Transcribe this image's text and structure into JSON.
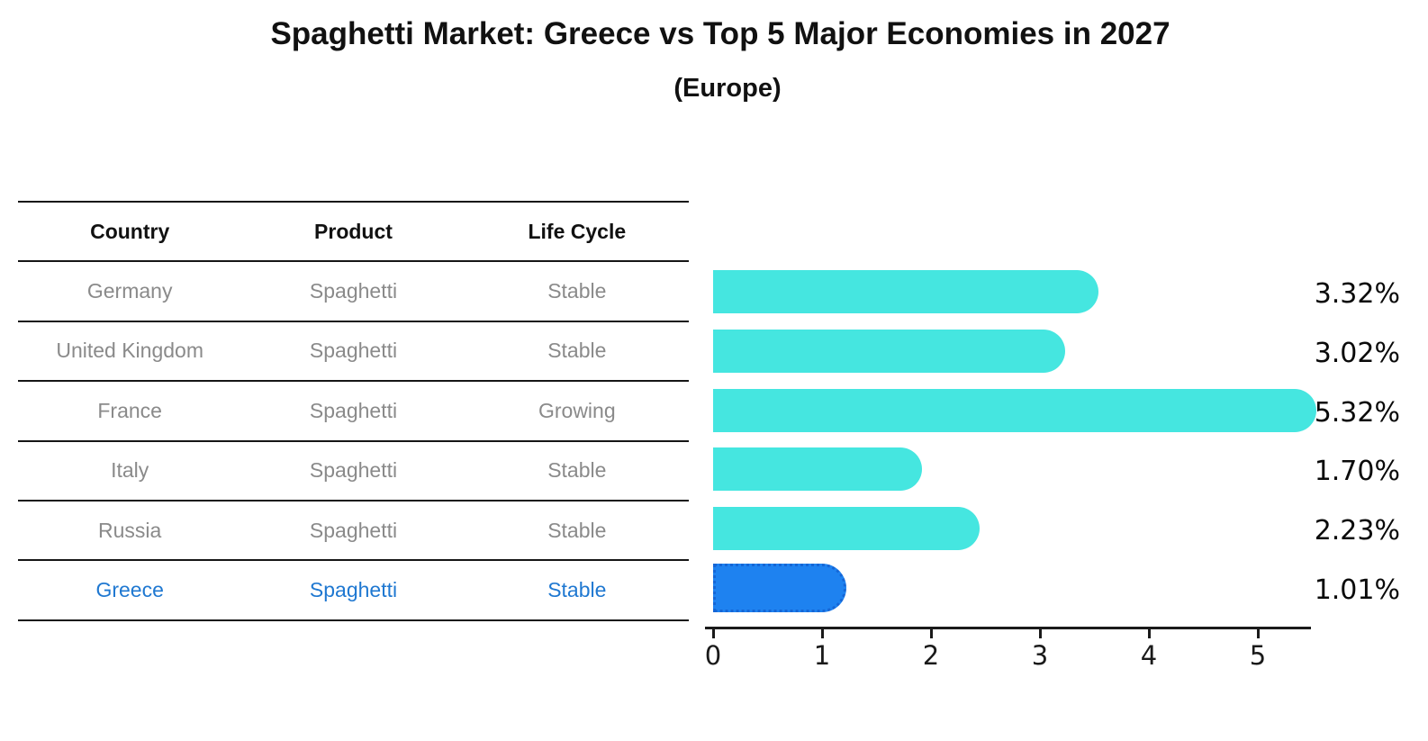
{
  "title": "Spaghetti Market: Greece vs Top 5 Major Economies in 2027",
  "subtitle": "(Europe)",
  "table": {
    "headers": [
      "Country",
      "Product",
      "Life Cycle"
    ],
    "rows": [
      {
        "country": "Germany",
        "product": "Spaghetti",
        "life_cycle": "Stable",
        "highlight": false
      },
      {
        "country": "United Kingdom",
        "product": "Spaghetti",
        "life_cycle": "Stable",
        "highlight": false
      },
      {
        "country": "France",
        "product": "Spaghetti",
        "life_cycle": "Growing",
        "highlight": false
      },
      {
        "country": "Italy",
        "product": "Spaghetti",
        "life_cycle": "Stable",
        "highlight": false
      },
      {
        "country": "Russia",
        "product": "Spaghetti",
        "life_cycle": "Stable",
        "highlight": false
      },
      {
        "country": "Greece",
        "product": "Spaghetti",
        "life_cycle": "Stable",
        "highlight": true
      }
    ]
  },
  "chart_data": {
    "type": "bar",
    "orientation": "horizontal",
    "title": "Spaghetti Market: Greece vs Top 5 Major Economies in 2027",
    "subtitle": "(Europe)",
    "categories": [
      "Germany",
      "United Kingdom",
      "France",
      "Italy",
      "Russia",
      "Greece"
    ],
    "values": [
      3.32,
      3.02,
      5.32,
      1.7,
      2.23,
      1.01
    ],
    "value_labels": [
      "3.32%",
      "3.02%",
      "5.32%",
      "1.70%",
      "2.23%",
      "1.01%"
    ],
    "xlabel": "",
    "ylabel": "",
    "xlim": [
      0,
      5.56
    ],
    "x_ticks": [
      0,
      1,
      2,
      3,
      4,
      5
    ],
    "grid": false,
    "legend": false,
    "bar_color": "#45E6E0",
    "highlight_bar_color": "#1E82F0",
    "highlight_bar_border_color": "#1566D6",
    "highlight_index": 5,
    "highlight_text_color": "#1f78d1"
  }
}
